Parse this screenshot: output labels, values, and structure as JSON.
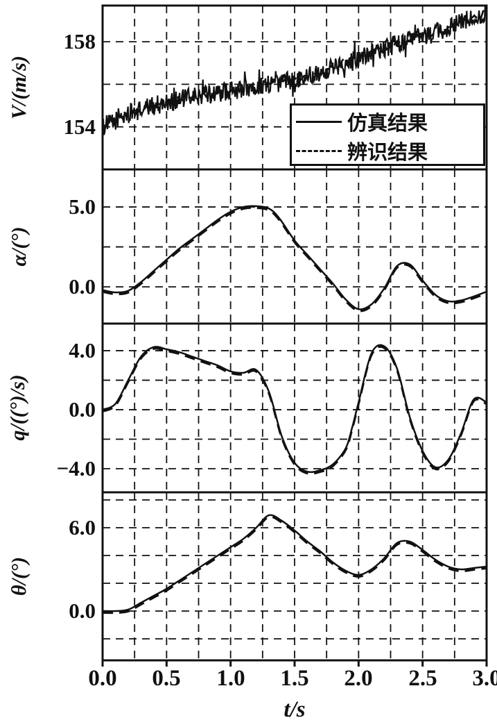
{
  "figure": {
    "background": "#ffffff",
    "ink": "#111111"
  },
  "legend": {
    "entries": [
      {
        "label": "仿真结果",
        "style": "solid"
      },
      {
        "label": "辨识结果",
        "style": "dashed"
      }
    ]
  },
  "x_axis": {
    "title_var": "t",
    "title_rest": "/s",
    "range": [
      0,
      3
    ],
    "minor_grid_step": 0.25,
    "ticks": [
      {
        "value": 0.0,
        "label": "0.0"
      },
      {
        "value": 0.5,
        "label": "0.5"
      },
      {
        "value": 1.0,
        "label": "1.0"
      },
      {
        "value": 1.5,
        "label": "1.5"
      },
      {
        "value": 2.0,
        "label": "2.0"
      },
      {
        "value": 2.5,
        "label": "2.5"
      },
      {
        "value": 3.0,
        "label": "3.0"
      }
    ]
  },
  "chart_data": [
    {
      "type": "line",
      "id": "velocity",
      "ylabel_var": "V",
      "ylabel_rest": "/(m/s)",
      "ylim": [
        152.0,
        159.7
      ],
      "yticks": [
        {
          "value": 154,
          "label": "154"
        },
        {
          "value": 158,
          "label": "158"
        }
      ],
      "ygrid": [
        154,
        156,
        158
      ],
      "x": [
        0,
        0.2,
        0.4,
        0.6,
        0.8,
        1.0,
        1.2,
        1.4,
        1.6,
        1.8,
        2.0,
        2.2,
        2.4,
        2.6,
        2.8,
        3.0
      ],
      "y": [
        154.0,
        154.6,
        155.0,
        155.3,
        155.5,
        155.7,
        155.9,
        156.1,
        156.4,
        156.8,
        157.3,
        157.7,
        158.1,
        158.4,
        158.9,
        159.4
      ],
      "series": [
        {
          "name": "仿真结果",
          "style": "solid",
          "noise_amplitude": 0.45
        },
        {
          "name": "辨识结果",
          "style": "dashed",
          "noise_amplitude": 0.12
        }
      ]
    },
    {
      "type": "line",
      "id": "alpha",
      "ylabel_var": "α",
      "ylabel_rest": "/(°)",
      "ylim": [
        -2.3,
        7.35
      ],
      "yticks": [
        {
          "value": 5.0,
          "label": "5.0"
        },
        {
          "value": 0.0,
          "label": "0.0"
        }
      ],
      "ygrid": [
        0,
        2.5,
        5
      ],
      "x": [
        0,
        0.1,
        0.2,
        0.3,
        0.4,
        0.5,
        0.6,
        0.7,
        0.8,
        0.9,
        1.0,
        1.1,
        1.2,
        1.3,
        1.38,
        1.5,
        1.6,
        1.7,
        1.8,
        1.9,
        2.0,
        2.1,
        2.2,
        2.3,
        2.4,
        2.5,
        2.6,
        2.7,
        2.8,
        2.9,
        3.0
      ],
      "y": [
        -0.2,
        -0.35,
        -0.25,
        0.3,
        1.0,
        1.7,
        2.4,
        3.0,
        3.6,
        4.2,
        4.7,
        5.0,
        5.05,
        4.9,
        4.3,
        2.9,
        2.0,
        1.1,
        0.2,
        -0.8,
        -1.4,
        -1.1,
        -0.1,
        1.3,
        1.4,
        0.4,
        -0.5,
        -0.9,
        -0.85,
        -0.6,
        -0.3
      ],
      "series": [
        {
          "name": "仿真结果",
          "style": "solid",
          "noise_amplitude": 0
        },
        {
          "name": "辨识结果",
          "style": "dashed",
          "noise_amplitude": 0
        }
      ]
    },
    {
      "type": "line",
      "id": "pitch-rate",
      "ylabel_var": "q",
      "ylabel_rest": "/((°)/s)",
      "ylim": [
        -5.6,
        5.84
      ],
      "yticks": [
        {
          "value": 4.0,
          "label": "4.0"
        },
        {
          "value": 0.0,
          "label": "0.0"
        },
        {
          "value": -4.0,
          "label": "−4.0"
        }
      ],
      "ygrid": [
        -4,
        -2,
        0,
        2,
        4
      ],
      "x": [
        0,
        0.1,
        0.2,
        0.3,
        0.4,
        0.5,
        0.6,
        0.7,
        0.8,
        0.9,
        1.0,
        1.1,
        1.2,
        1.3,
        1.4,
        1.5,
        1.6,
        1.7,
        1.8,
        1.9,
        1.95,
        2.0,
        2.1,
        2.2,
        2.3,
        2.4,
        2.5,
        2.6,
        2.7,
        2.8,
        2.9,
        3.0
      ],
      "y": [
        0.0,
        0.4,
        2.0,
        3.6,
        4.25,
        4.1,
        3.9,
        3.6,
        3.3,
        3.0,
        2.6,
        2.5,
        2.7,
        1.2,
        -1.8,
        -3.6,
        -4.2,
        -4.1,
        -3.7,
        -2.6,
        -1.2,
        0.5,
        3.8,
        4.3,
        2.8,
        -0.5,
        -2.8,
        -3.9,
        -3.4,
        -1.6,
        0.7,
        0.5
      ],
      "series": [
        {
          "name": "仿真结果",
          "style": "solid",
          "noise_amplitude": 0
        },
        {
          "name": "辨识结果",
          "style": "dashed",
          "noise_amplitude": 0
        }
      ]
    },
    {
      "type": "line",
      "id": "theta",
      "ylabel_var": "θ",
      "ylabel_rest": "/(°)",
      "ylim": [
        -3.55,
        8.55
      ],
      "yticks": [
        {
          "value": 6.0,
          "label": "6.0"
        },
        {
          "value": 0.0,
          "label": "0.0"
        }
      ],
      "ygrid": [
        -2,
        0,
        2,
        4,
        6,
        8
      ],
      "x": [
        0,
        0.1,
        0.2,
        0.3,
        0.4,
        0.5,
        0.6,
        0.7,
        0.8,
        0.9,
        1.0,
        1.1,
        1.2,
        1.3,
        1.4,
        1.5,
        1.6,
        1.7,
        1.8,
        1.9,
        2.0,
        2.1,
        2.2,
        2.3,
        2.4,
        2.5,
        2.6,
        2.7,
        2.8,
        2.9,
        3.0
      ],
      "y": [
        0.0,
        0.0,
        0.1,
        0.6,
        1.1,
        1.6,
        2.2,
        2.8,
        3.4,
        4.0,
        4.6,
        5.2,
        6.0,
        6.9,
        6.5,
        5.8,
        5.0,
        4.3,
        3.5,
        2.9,
        2.6,
        3.0,
        3.8,
        4.9,
        5.0,
        4.4,
        3.7,
        3.2,
        3.0,
        3.1,
        3.2
      ],
      "series": [
        {
          "name": "仿真结果",
          "style": "solid",
          "noise_amplitude": 0
        },
        {
          "name": "辨识结果",
          "style": "dashed",
          "noise_amplitude": 0
        }
      ]
    }
  ]
}
